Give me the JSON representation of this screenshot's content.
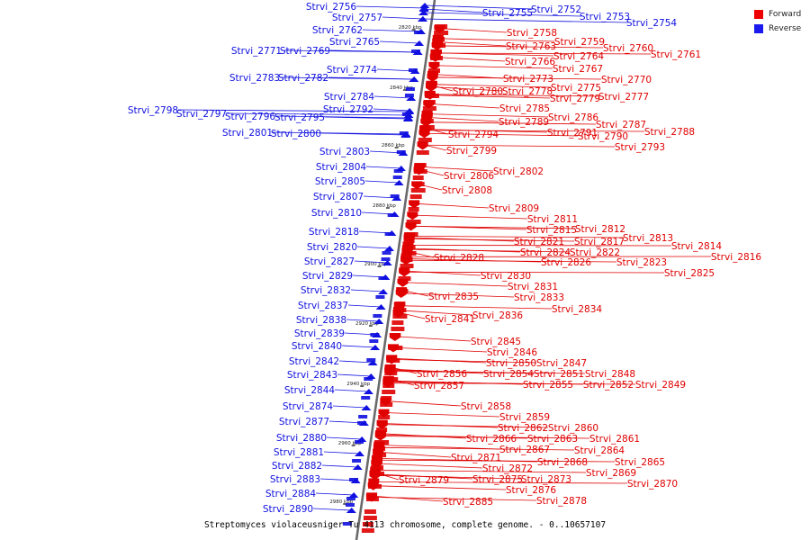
{
  "caption": "Streptomyces violaceusniger Tu 4113 chromosome, complete genome. - 0..10657107",
  "legend": [
    {
      "label": "Forward",
      "color": "#ee0000"
    },
    {
      "label": "Reverse",
      "color": "#1a1aee"
    }
  ],
  "colors": {
    "forward": "#e00000",
    "reverse": "#1010e0",
    "axis": "#6a6a6a"
  },
  "ticks": [
    "2820 kbp",
    "2840 kbp",
    "2860 kbp",
    "2880 kbp",
    "2900 kbp",
    "2920 kbp",
    "2940 kbp",
    "2960 kbp",
    "2980 kbp"
  ],
  "reverse_genes": [
    "Strvi_2752",
    "Strvi_2753",
    "Strvi_2754",
    "Strvi_2755",
    "Strvi_2756",
    "Strvi_2757",
    "Strvi_2762",
    "Strvi_2765",
    "Strvi_2769",
    "Strvi_2771",
    "Strvi_2774",
    "Strvi_2782",
    "Strvi_2783",
    "Strvi_2784",
    "Strvi_2792",
    "Strvi_2795",
    "Strvi_2796",
    "Strvi_2797",
    "Strvi_2798",
    "Strvi_2800",
    "Strvi_2801",
    "Strvi_2803",
    "Strvi_2804",
    "Strvi_2805",
    "Strvi_2807",
    "Strvi_2810",
    "Strvi_2818",
    "Strvi_2820",
    "Strvi_2827",
    "Strvi_2829",
    "Strvi_2832",
    "Strvi_2837",
    "Strvi_2838",
    "Strvi_2839",
    "Strvi_2840",
    "Strvi_2842",
    "Strvi_2843",
    "Strvi_2844",
    "Strvi_2874",
    "Strvi_2877",
    "Strvi_2880",
    "Strvi_2881",
    "Strvi_2882",
    "Strvi_2883",
    "Strvi_2884",
    "Strvi_2890"
  ],
  "forward_genes": [
    "Strvi_2758",
    "Strvi_2759",
    "Strvi_2760",
    "Strvi_2761",
    "Strvi_2763",
    "Strvi_2764",
    "Strvi_2766",
    "Strvi_2767",
    "Strvi_2770",
    "Strvi_2773",
    "Strvi_2775",
    "Strvi_2777",
    "Strvi_2778",
    "Strvi_2779",
    "Strvi_2780",
    "Strvi_2785",
    "Strvi_2786",
    "Strvi_2787",
    "Strvi_2788",
    "Strvi_2789",
    "Strvi_2790",
    "Strvi_2791",
    "Strvi_2793",
    "Strvi_2794",
    "Strvi_2799",
    "Strvi_2802",
    "Strvi_2806",
    "Strvi_2808",
    "Strvi_2809",
    "Strvi_2811",
    "Strvi_2812",
    "Strvi_2813",
    "Strvi_2814",
    "Strvi_2815",
    "Strvi_2816",
    "Strvi_2817",
    "Strvi_2821",
    "Strvi_2822",
    "Strvi_2823",
    "Strvi_2824",
    "Strvi_2825",
    "Strvi_2826",
    "Strvi_2828",
    "Strvi_2830",
    "Strvi_2831",
    "Strvi_2833",
    "Strvi_2834",
    "Strvi_2835",
    "Strvi_2836",
    "Strvi_2841",
    "Strvi_2845",
    "Strvi_2846",
    "Strvi_2847",
    "Strvi_2848",
    "Strvi_2849",
    "Strvi_2850",
    "Strvi_2851",
    "Strvi_2852",
    "Strvi_2854",
    "Strvi_2855",
    "Strvi_2856",
    "Strvi_2857",
    "Strvi_2858",
    "Strvi_2859",
    "Strvi_2860",
    "Strvi_2861",
    "Strvi_2862",
    "Strvi_2863",
    "Strvi_2864",
    "Strvi_2865",
    "Strvi_2866",
    "Strvi_2867",
    "Strvi_2868",
    "Strvi_2869",
    "Strvi_2870",
    "Strvi_2871",
    "Strvi_2872",
    "Strvi_2873",
    "Strvi_2875",
    "Strvi_2876",
    "Strvi_2878",
    "Strvi_2879",
    "Strvi_2885"
  ]
}
